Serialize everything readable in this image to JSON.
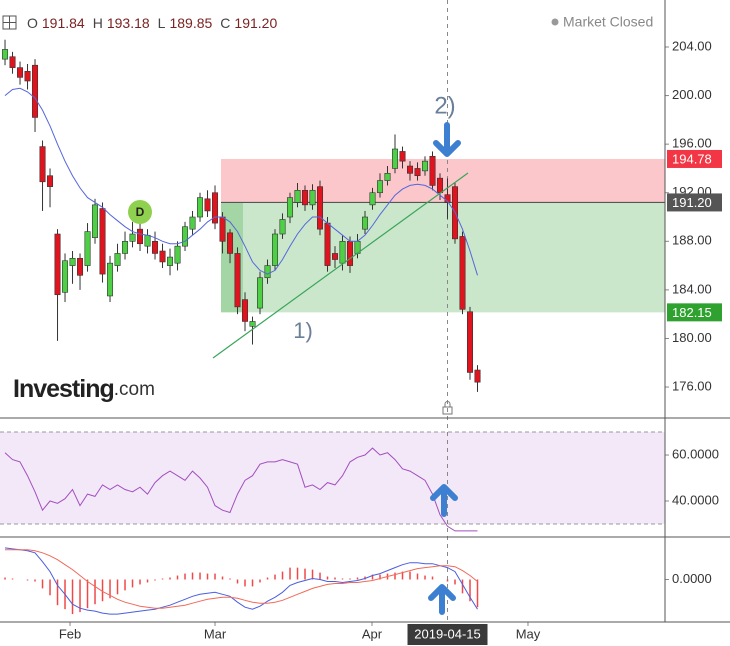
{
  "header": {
    "ohlc": [
      {
        "name": "O",
        "value": "191.84"
      },
      {
        "name": "H",
        "value": "193.18"
      },
      {
        "name": "L",
        "value": "189.85"
      },
      {
        "name": "C",
        "value": "191.20"
      }
    ],
    "status": "Market Closed"
  },
  "watermark": {
    "brand": "Investing",
    "suffix": ".com"
  },
  "chart_data": [
    {
      "type": "candlestick",
      "up_color": "#4fcf45",
      "down_color": "#e0141e",
      "open": [
        203.0,
        203.2,
        202.3,
        202.0,
        202.5,
        195.8,
        193.4,
        188.6,
        183.8,
        186.0,
        186.6,
        186.0,
        188.3,
        190.7,
        183.5,
        186.0,
        187.0,
        188.0,
        189.0,
        187.6,
        188.0,
        187.2,
        186.0,
        186.2,
        187.6,
        189.0,
        190.0,
        191.5,
        192.0,
        190.0,
        188.7,
        187.0,
        183.2,
        181.0,
        182.5,
        185.0,
        186.0,
        188.6,
        190.0,
        191.2,
        192.2,
        191.0,
        192.5,
        189.5,
        187.0,
        186.2,
        188.0,
        187.0,
        189.0,
        191.0,
        192.0,
        193.0,
        194.0,
        195.4,
        194.2,
        194.0,
        193.8,
        195.0,
        193.2,
        191.84,
        192.5,
        188.4,
        182.2,
        177.4
      ],
      "high": [
        204.6,
        203.6,
        202.8,
        202.6,
        203.0,
        196.3,
        194.0,
        189.0,
        187.0,
        187.2,
        187.0,
        189.5,
        191.5,
        191.2,
        186.8,
        187.8,
        188.8,
        189.6,
        189.5,
        189.0,
        188.8,
        187.8,
        187.4,
        188.0,
        189.6,
        190.5,
        192.0,
        192.2,
        192.6,
        190.4,
        189.0,
        187.5,
        183.8,
        181.8,
        185.5,
        186.5,
        189.0,
        190.3,
        192.0,
        192.8,
        192.6,
        192.7,
        193.0,
        190.0,
        187.6,
        188.5,
        188.4,
        188.6,
        190.5,
        192.4,
        193.6,
        194.2,
        196.8,
        195.8,
        194.6,
        194.5,
        195.0,
        195.4,
        193.6,
        193.18,
        192.8,
        188.8,
        182.6,
        177.8
      ],
      "low": [
        202.5,
        201.8,
        200.9,
        200.5,
        197.0,
        190.5,
        190.8,
        179.8,
        183.0,
        184.5,
        184.0,
        185.5,
        187.8,
        184.6,
        183.0,
        185.5,
        186.5,
        187.5,
        187.2,
        187.0,
        186.5,
        185.8,
        185.2,
        185.6,
        187.2,
        188.5,
        189.6,
        190.0,
        189.0,
        187.0,
        186.2,
        182.0,
        180.6,
        179.5,
        182.0,
        184.5,
        185.6,
        188.2,
        189.5,
        190.8,
        190.5,
        190.6,
        188.5,
        185.5,
        185.8,
        185.6,
        185.4,
        186.6,
        188.6,
        190.6,
        191.6,
        192.6,
        193.6,
        194.0,
        193.0,
        193.0,
        193.4,
        192.2,
        191.4,
        189.85,
        187.8,
        182.0,
        176.6,
        175.6
      ],
      "close": [
        203.8,
        202.3,
        201.5,
        201.2,
        198.2,
        192.9,
        192.5,
        183.6,
        186.4,
        186.6,
        185.2,
        188.8,
        191.0,
        185.3,
        186.2,
        187.0,
        188.0,
        188.6,
        187.8,
        188.5,
        187.0,
        186.3,
        186.7,
        187.6,
        189.2,
        190.0,
        191.6,
        190.5,
        189.5,
        188.0,
        187.0,
        182.6,
        181.4,
        181.4,
        185.0,
        186.0,
        188.6,
        189.8,
        191.6,
        192.2,
        191.0,
        192.2,
        189.0,
        186.0,
        186.5,
        188.0,
        186.0,
        188.0,
        190.0,
        192.0,
        193.0,
        193.6,
        195.6,
        194.6,
        193.6,
        193.4,
        194.6,
        192.6,
        192.0,
        191.2,
        188.2,
        182.4,
        177.2,
        176.4
      ],
      "overlay": {
        "color": "#5566dd",
        "values": [
          200.0,
          200.5,
          200.6,
          200.3,
          199.8,
          198.8,
          197.5,
          196.0,
          194.6,
          193.4,
          192.4,
          191.6,
          191.2,
          190.8,
          190.2,
          189.7,
          189.2,
          188.8,
          188.6,
          188.5,
          188.3,
          188.0,
          187.8,
          187.8,
          188.0,
          188.5,
          189.0,
          189.6,
          190.0,
          190.0,
          189.6,
          188.8,
          187.6,
          186.3,
          185.6,
          185.3,
          185.6,
          186.5,
          187.6,
          188.6,
          189.4,
          190.0,
          190.0,
          189.5,
          189.0,
          188.5,
          188.0,
          188.0,
          188.5,
          189.3,
          190.2,
          191.0,
          191.8,
          192.3,
          192.6,
          192.7,
          192.6,
          192.3,
          191.8,
          191.3,
          190.4,
          189.0,
          187.2,
          185.2
        ]
      },
      "ylim": [
        173.45,
        207.87
      ],
      "yticks": [
        {
          "value": 176,
          "label": "176.00"
        },
        {
          "value": 180,
          "label": "180.00"
        },
        {
          "value": 184,
          "label": "184.00"
        },
        {
          "value": 188,
          "label": "188.00"
        },
        {
          "value": 192,
          "label": "192.00"
        },
        {
          "value": 196,
          "label": "196.00"
        },
        {
          "value": 200,
          "label": "200.00"
        },
        {
          "value": 204,
          "label": "204.00"
        }
      ],
      "levels": [
        {
          "value": 194.78,
          "label": "194.78",
          "color": "#f23645"
        },
        {
          "value": 191.2,
          "label": "191.20",
          "color": "#555555"
        },
        {
          "value": 182.15,
          "label": "182.15",
          "color": "#2ea12e"
        }
      ],
      "annotations": [
        {
          "text": "1)"
        },
        {
          "text": "2)"
        },
        {
          "text": "D"
        }
      ]
    },
    {
      "type": "line",
      "color": "#a24fc0",
      "values": [
        61,
        58,
        57,
        51,
        44,
        36,
        40,
        39,
        41,
        45,
        38,
        43,
        42,
        47,
        45,
        47,
        45,
        44,
        46,
        43,
        48,
        51,
        53,
        51,
        49,
        53,
        50,
        46,
        38,
        36,
        35,
        43,
        49,
        51,
        56,
        57,
        57,
        58,
        57,
        56,
        46,
        47,
        45,
        48,
        47,
        51,
        57,
        59,
        60,
        63,
        60,
        61,
        58,
        54,
        53,
        51,
        49,
        43,
        34,
        29,
        27,
        27,
        27,
        27
      ],
      "ylim": [
        24.35,
        76.1
      ],
      "yticks": [
        {
          "value": 40,
          "label": "40.0000"
        },
        {
          "value": 60,
          "label": "60.0000"
        }
      ],
      "bands": [
        30,
        70
      ]
    },
    {
      "type": "macd",
      "series": [
        {
          "color": "#4a5ee0",
          "values": [
            3.2,
            3.1,
            3.0,
            2.9,
            2.7,
            1.8,
            0.8,
            -0.6,
            -1.5,
            -2.5,
            -2.9,
            -3.1,
            -3.2,
            -3.4,
            -3.5,
            -3.5,
            -3.4,
            -3.3,
            -3.2,
            -3.1,
            -3.0,
            -2.8,
            -2.6,
            -2.3,
            -2.0,
            -1.7,
            -1.5,
            -1.4,
            -1.3,
            -1.5,
            -1.7,
            -2.3,
            -2.8,
            -3.0,
            -2.7,
            -2.2,
            -1.8,
            -1.3,
            -0.6,
            -0.3,
            -0.1,
            0.1,
            0.0,
            -0.2,
            -0.2,
            -0.3,
            -0.2,
            -0.1,
            0.1,
            0.4,
            0.6,
            0.9,
            1.2,
            1.5,
            1.7,
            1.7,
            1.6,
            1.6,
            1.4,
            1.2,
            0.8,
            -0.5,
            -1.8,
            -3.0
          ]
        },
        {
          "color": "#f06a5a",
          "values": [
            3.0,
            3.0,
            3.0,
            3.0,
            2.9,
            2.7,
            2.4,
            2.0,
            1.5,
            1.0,
            0.4,
            -0.2,
            -0.7,
            -1.2,
            -1.6,
            -2.0,
            -2.3,
            -2.5,
            -2.7,
            -2.8,
            -2.9,
            -2.9,
            -2.8,
            -2.7,
            -2.6,
            -2.4,
            -2.2,
            -2.0,
            -1.9,
            -1.8,
            -1.8,
            -1.9,
            -2.1,
            -2.3,
            -2.4,
            -2.4,
            -2.3,
            -2.1,
            -1.8,
            -1.5,
            -1.2,
            -0.9,
            -0.7,
            -0.5,
            -0.4,
            -0.4,
            -0.3,
            -0.3,
            -0.2,
            -0.1,
            0.1,
            0.3,
            0.5,
            0.7,
            0.9,
            1.1,
            1.2,
            1.3,
            1.4,
            1.4,
            1.3,
            0.9,
            0.4,
            -0.2
          ]
        }
      ],
      "histogram": {
        "color": "#f04848",
        "values": [
          0.2,
          0.1,
          0,
          -0.1,
          -0.2,
          -0.9,
          -1.6,
          -2.6,
          -3.0,
          -3.5,
          -3.3,
          -2.9,
          -2.5,
          -2.2,
          -1.9,
          -1.5,
          -1.1,
          -0.8,
          -0.5,
          -0.3,
          -0.1,
          0.1,
          0.2,
          0.4,
          0.6,
          0.7,
          0.7,
          0.6,
          0.6,
          0.3,
          0.1,
          -0.4,
          -0.7,
          -0.7,
          -0.3,
          0.2,
          0.5,
          0.8,
          1.2,
          1.2,
          1.1,
          1.0,
          0.7,
          0.3,
          0.2,
          0.1,
          0.1,
          0.2,
          0.3,
          0.5,
          0.5,
          0.6,
          0.7,
          0.8,
          0.8,
          0.6,
          0.4,
          0.3,
          0,
          -0.2,
          -0.5,
          -1.4,
          -2.2,
          -2.8
        ]
      },
      "ylim": [
        -4.3,
        4.3
      ],
      "yticks": [
        {
          "value": 0,
          "label": "0.0000"
        }
      ],
      "xlim": [
        -0.67,
        88
      ],
      "xticks": [
        {
          "value": 8.67,
          "label": "Feb"
        },
        {
          "value": 28,
          "label": "Mar"
        },
        {
          "value": 48.93,
          "label": "Apr"
        },
        {
          "value": 69.73,
          "label": "May"
        }
      ],
      "cursor": {
        "value": 59,
        "label": "2019-04-15"
      }
    }
  ]
}
